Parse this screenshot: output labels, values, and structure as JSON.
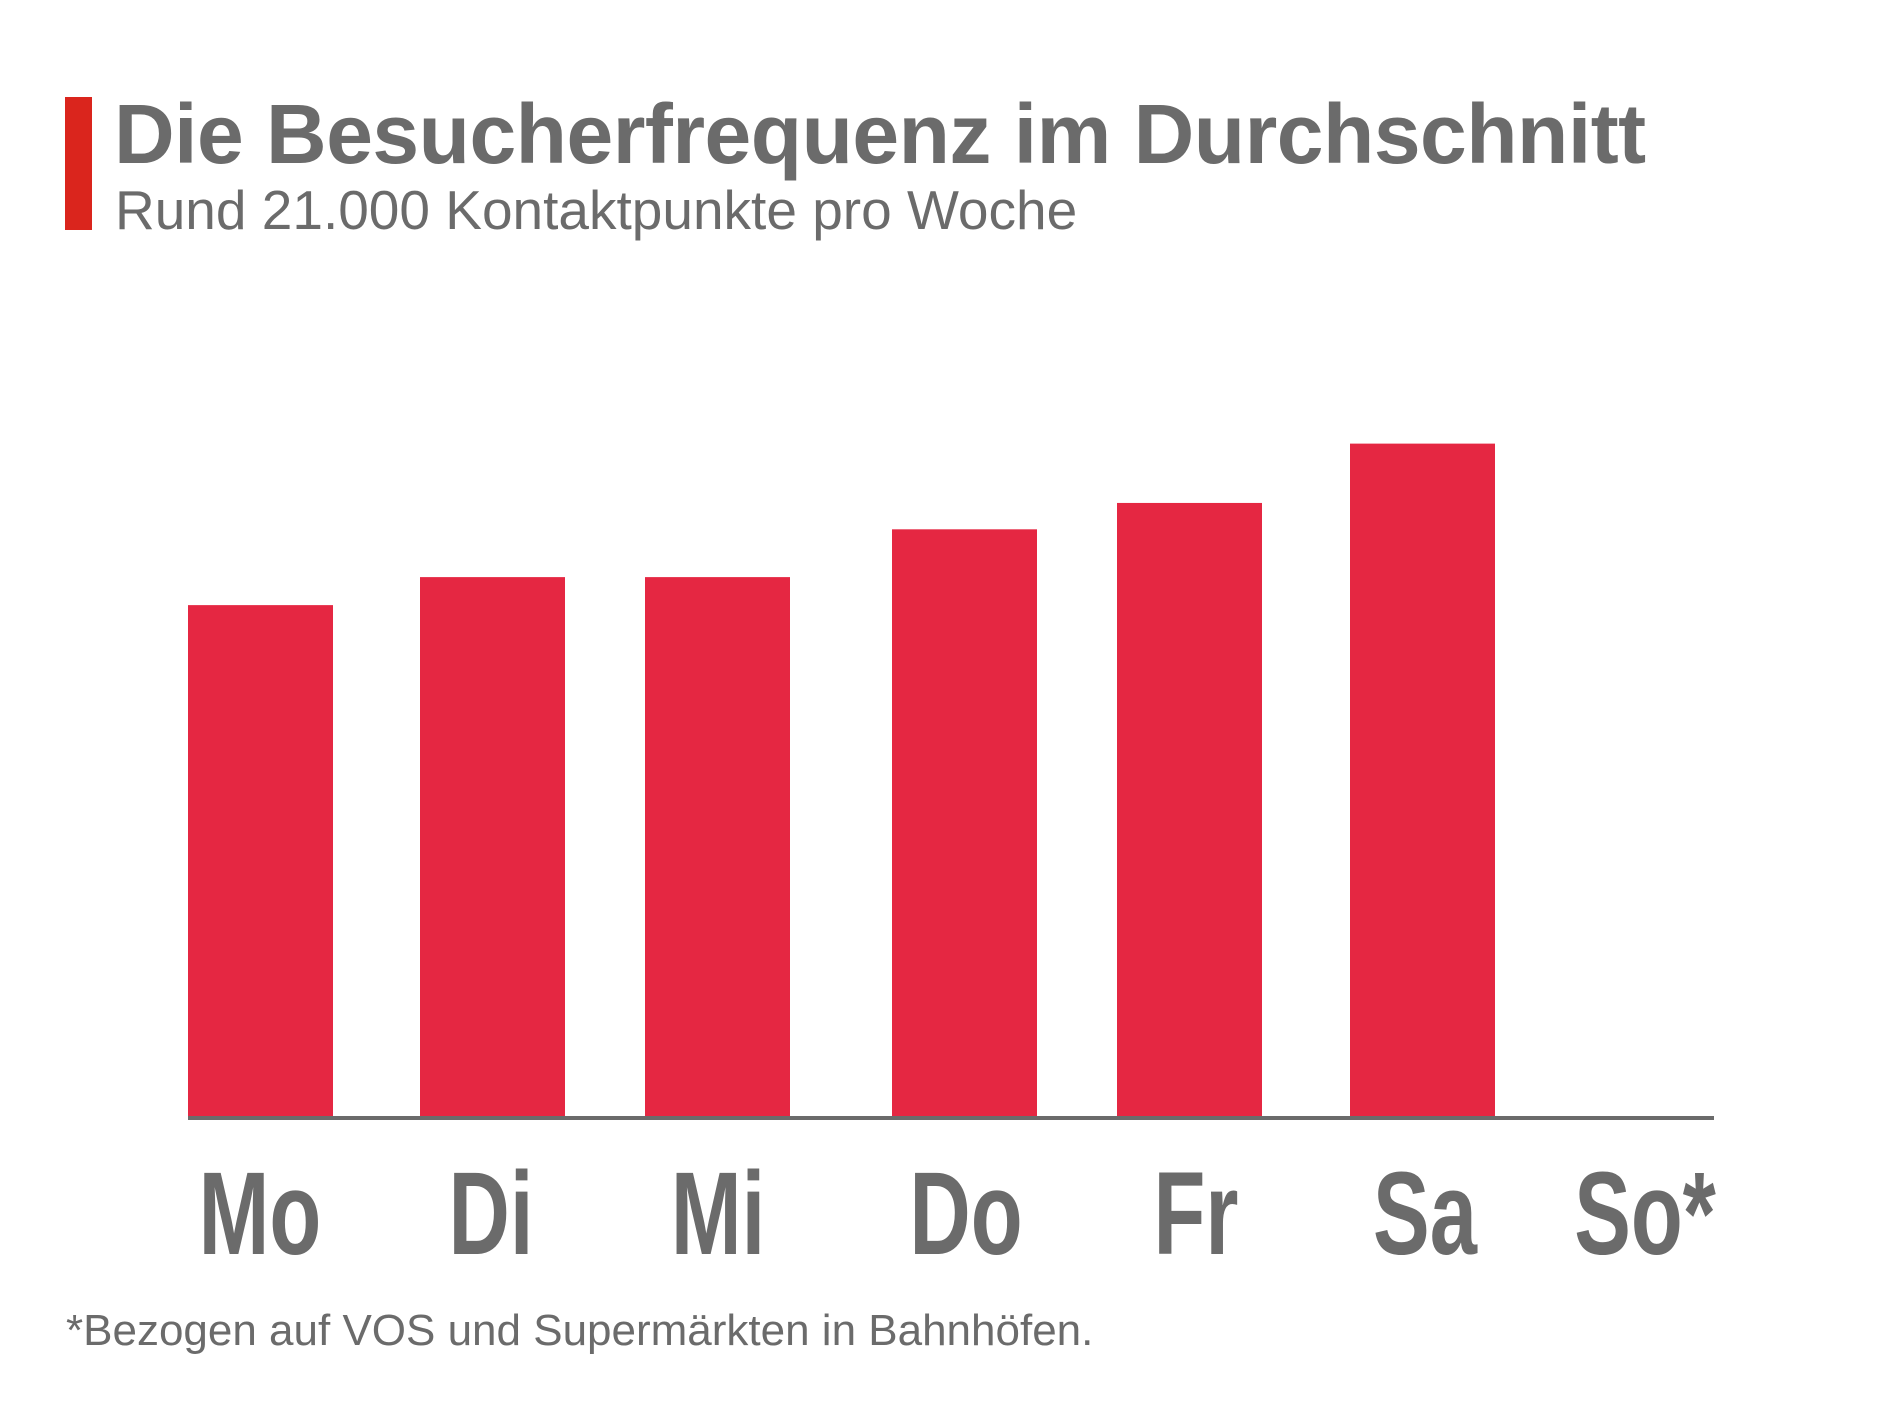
{
  "chart_data": {
    "type": "bar",
    "title": "Die Besucherfrequenz im Durchschnitt",
    "subtitle": "Rund 21.000 Kontaktpunkte pro Woche",
    "categories": [
      "Mo",
      "Di",
      "Mi",
      "Do",
      "Fr",
      "Sa",
      "So*"
    ],
    "values": [
      3100,
      3270,
      3270,
      3560,
      3720,
      4080,
      0
    ],
    "xlabel": "",
    "ylabel": "",
    "ylim": [
      0,
      4400
    ],
    "grid": false,
    "legend": "none",
    "footnote": "*Bezogen auf VOS und Supermärkten in Bahnhöfen.",
    "colors": {
      "bar": "#E52742",
      "accent": "#DA251D",
      "text": "#6b6b6b",
      "axis": "#6b6b6b"
    }
  }
}
